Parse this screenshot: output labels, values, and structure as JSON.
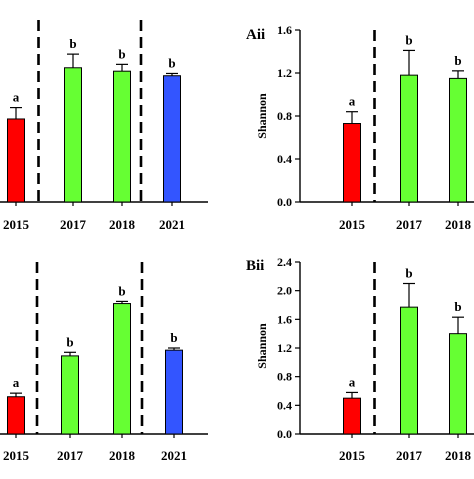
{
  "chart_data": [
    {
      "type": "bar",
      "panel_label": "",
      "ylabel": "",
      "categories": [
        "2015",
        "2017",
        "2018",
        "2021"
      ],
      "values": [
        0.73,
        1.18,
        1.15,
        1.11
      ],
      "errors": [
        0.1,
        0.12,
        0.06,
        0.02
      ],
      "letters": [
        "a",
        "b",
        "b",
        "b"
      ],
      "colors": [
        "#ff0000",
        "#66ff33",
        "#66ff33",
        "#3355ff"
      ],
      "ylim": [
        0,
        1.6
      ],
      "yticks": [],
      "separators_after": [
        0,
        2
      ],
      "grid": false
    },
    {
      "type": "bar",
      "panel_label": "Aii",
      "ylabel": "Shannon",
      "categories": [
        "2015",
        "2017",
        "2018"
      ],
      "values": [
        0.73,
        1.18,
        1.15
      ],
      "errors": [
        0.11,
        0.23,
        0.07
      ],
      "letters": [
        "a",
        "b",
        "b"
      ],
      "colors": [
        "#ff0000",
        "#66ff33",
        "#66ff33"
      ],
      "ylim": [
        0,
        1.6
      ],
      "yticks": [
        "0.0",
        "0.4",
        "0.8",
        "1.2",
        "1.6"
      ],
      "separators_after": [
        0
      ],
      "grid": false
    },
    {
      "type": "bar",
      "panel_label": "",
      "ylabel": "",
      "categories": [
        "2015",
        "2017",
        "2018",
        "2021"
      ],
      "values": [
        0.52,
        1.09,
        1.82,
        1.17
      ],
      "errors": [
        0.05,
        0.05,
        0.03,
        0.03
      ],
      "letters": [
        "a",
        "b",
        "b",
        "b"
      ],
      "colors": [
        "#ff0000",
        "#66ff33",
        "#66ff33",
        "#3355ff"
      ],
      "ylim": [
        0,
        2.4
      ],
      "yticks": [],
      "separators_after": [
        0,
        2
      ],
      "grid": false
    },
    {
      "type": "bar",
      "panel_label": "Bii",
      "ylabel": "Shannon",
      "categories": [
        "2015",
        "2017",
        "2018"
      ],
      "values": [
        0.5,
        1.77,
        1.4
      ],
      "errors": [
        0.08,
        0.33,
        0.23
      ],
      "letters": [
        "a",
        "b",
        "b"
      ],
      "colors": [
        "#ff0000",
        "#66ff33",
        "#66ff33"
      ],
      "ylim": [
        0,
        2.4
      ],
      "yticks": [
        "0.0",
        "0.4",
        "0.8",
        "1.2",
        "1.6",
        "2.0",
        "2.4"
      ],
      "separators_after": [
        0
      ],
      "grid": false
    }
  ]
}
